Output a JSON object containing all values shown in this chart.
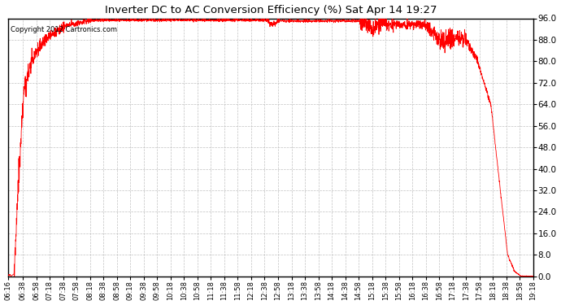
{
  "title": "Inverter DC to AC Conversion Efficiency (%) Sat Apr 14 19:27",
  "copyright_text": "Copyright 2012 Cartronics.com",
  "line_color": "#ff0000",
  "background_color": "#ffffff",
  "grid_color": "#bbbbbb",
  "ylim": [
    0.0,
    96.0
  ],
  "yticks": [
    0.0,
    8.0,
    16.0,
    24.0,
    32.0,
    40.0,
    48.0,
    56.0,
    64.0,
    72.0,
    80.0,
    88.0,
    96.0
  ],
  "x_start_minutes": 376,
  "x_end_minutes": 1158,
  "xtick_labels": [
    "06:16",
    "06:38",
    "06:58",
    "07:18",
    "07:38",
    "07:58",
    "08:18",
    "08:38",
    "08:58",
    "09:18",
    "09:38",
    "09:58",
    "10:18",
    "10:38",
    "10:58",
    "11:18",
    "11:38",
    "11:58",
    "12:18",
    "12:38",
    "12:58",
    "13:18",
    "13:38",
    "13:58",
    "14:18",
    "14:38",
    "14:58",
    "15:18",
    "15:38",
    "15:58",
    "16:18",
    "16:38",
    "16:58",
    "17:18",
    "17:38",
    "17:58",
    "18:18",
    "18:38",
    "18:58",
    "19:18"
  ],
  "xtick_minutes": [
    376,
    398,
    418,
    438,
    458,
    478,
    498,
    518,
    538,
    558,
    578,
    598,
    618,
    638,
    658,
    678,
    698,
    718,
    738,
    758,
    778,
    798,
    818,
    838,
    858,
    878,
    898,
    918,
    938,
    958,
    978,
    998,
    1018,
    1038,
    1058,
    1078,
    1098,
    1118,
    1138,
    1158
  ]
}
